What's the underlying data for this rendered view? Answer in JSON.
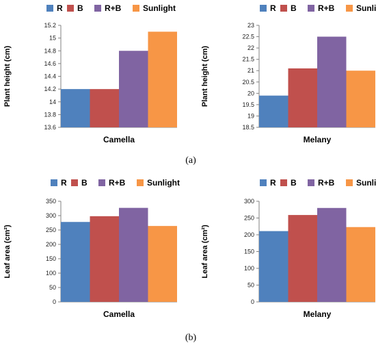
{
  "colors": {
    "R": "#4f81bd",
    "B": "#c0504d",
    "R+B": "#8064a2",
    "Sunlight": "#f79646",
    "axis": "#808080"
  },
  "captions": {
    "a": "(a)",
    "b": "(b)"
  },
  "chart_data": [
    {
      "type": "bar",
      "categories": [
        "Camella"
      ],
      "series": [
        {
          "name": "R",
          "values": [
            14.2
          ]
        },
        {
          "name": "B",
          "values": [
            14.2
          ]
        },
        {
          "name": "R+B",
          "values": [
            14.8
          ]
        },
        {
          "name": "Sunlight",
          "values": [
            15.1
          ]
        }
      ],
      "ylabel": "Plant height (cm)",
      "ylim": [
        13.6,
        15.2
      ],
      "yticks": [
        13.6,
        13.8,
        14,
        14.2,
        14.4,
        14.6,
        14.8,
        15,
        15.2
      ],
      "legend": "top"
    },
    {
      "type": "bar",
      "categories": [
        "Melany"
      ],
      "series": [
        {
          "name": "R",
          "values": [
            19.9
          ]
        },
        {
          "name": "B",
          "values": [
            21.1
          ]
        },
        {
          "name": "R+B",
          "values": [
            22.5
          ]
        },
        {
          "name": "Sunlight",
          "values": [
            21.0
          ]
        }
      ],
      "ylabel": "Plant height (cm)",
      "ylim": [
        18.5,
        23
      ],
      "yticks": [
        18.5,
        19,
        19.5,
        20,
        20.5,
        21,
        21.5,
        22,
        22.5,
        23
      ],
      "legend": "top"
    },
    {
      "type": "bar",
      "categories": [
        "Camella"
      ],
      "series": [
        {
          "name": "R",
          "values": [
            278
          ]
        },
        {
          "name": "B",
          "values": [
            298
          ]
        },
        {
          "name": "R+B",
          "values": [
            327
          ]
        },
        {
          "name": "Sunlight",
          "values": [
            264
          ]
        }
      ],
      "ylabel": "Leaf area (cm²)",
      "ylim": [
        0,
        350
      ],
      "yticks": [
        0,
        50,
        100,
        150,
        200,
        250,
        300,
        350
      ],
      "legend": "top"
    },
    {
      "type": "bar",
      "categories": [
        "Melany"
      ],
      "series": [
        {
          "name": "R",
          "values": [
            211
          ]
        },
        {
          "name": "B",
          "values": [
            259
          ]
        },
        {
          "name": "R+B",
          "values": [
            280
          ]
        },
        {
          "name": "Sunlight",
          "values": [
            223
          ]
        }
      ],
      "ylabel": "Leaf area (cm²)",
      "ylim": [
        0,
        300
      ],
      "yticks": [
        0,
        50,
        100,
        150,
        200,
        250,
        300
      ],
      "legend": "top"
    }
  ]
}
